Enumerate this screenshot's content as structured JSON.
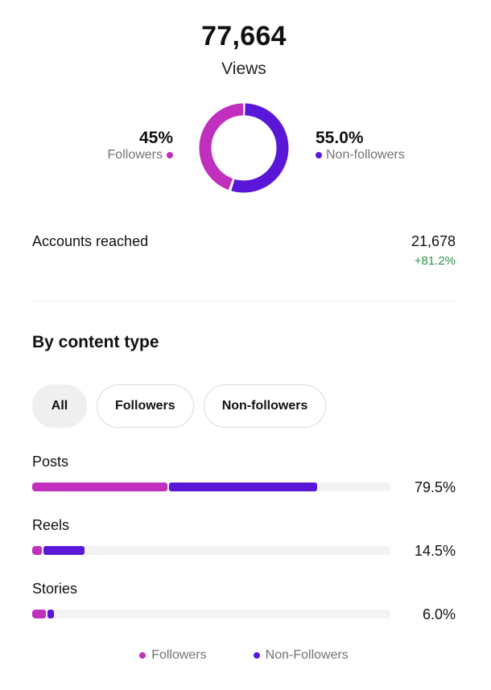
{
  "header": {
    "views_value": "77,664",
    "views_label": "Views"
  },
  "split": {
    "followers_pct": "45%",
    "followers_label": "Followers",
    "followers_share": 0.45,
    "non_followers_pct": "55.0%",
    "non_followers_label": "Non-followers",
    "non_followers_share": 0.55
  },
  "accounts": {
    "label": "Accounts reached",
    "value": "21,678",
    "change": "+81.2%"
  },
  "content_type": {
    "title": "By content type",
    "filters": [
      "All",
      "Followers",
      "Non-followers"
    ],
    "active_filter": "All",
    "rows": [
      {
        "label": "Posts",
        "percent": "79.5%",
        "followers_share": 0.38,
        "non_followers_share": 0.415
      },
      {
        "label": "Reels",
        "percent": "14.5%",
        "followers_share": 0.03,
        "non_followers_share": 0.115
      },
      {
        "label": "Stories",
        "percent": "6.0%",
        "followers_share": 0.04,
        "non_followers_share": 0.02
      }
    ]
  },
  "legend": {
    "followers": "Followers",
    "non_followers": "Non-Followers"
  },
  "colors": {
    "followers": "#c12fbe",
    "non_followers": "#5a17d8",
    "positive": "#2f8f4a",
    "track": "#f3f3f5"
  }
}
